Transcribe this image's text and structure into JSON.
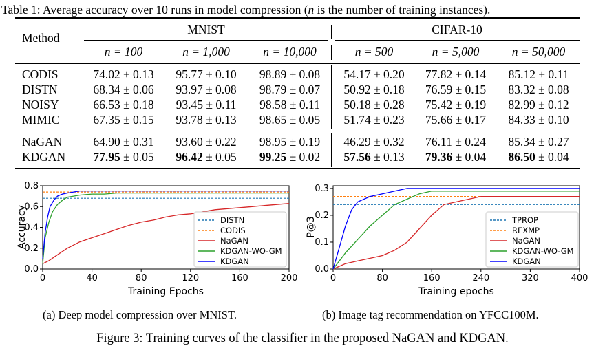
{
  "table": {
    "caption_prefix": "Table 1: Average accuracy over 10 runs in model compression (",
    "caption_var": "n",
    "caption_suffix": " is the number of training instances).",
    "method_header": "Method",
    "group_headers": [
      "MNIST",
      "CIFAR-10"
    ],
    "n_headers": [
      "n = 100",
      "n = 1,000",
      "n = 10,000",
      "n = 500",
      "n = 5,000",
      "n = 50,000"
    ],
    "rows_group1": [
      {
        "method": "CODIS",
        "cells": [
          "74.02 ± 0.13",
          "95.77 ± 0.10",
          "98.89 ± 0.08",
          "54.17 ± 0.20",
          "77.82 ± 0.14",
          "85.12 ± 0.11"
        ]
      },
      {
        "method": "DISTN",
        "cells": [
          "68.34 ± 0.06",
          "93.97 ± 0.08",
          "98.79 ± 0.07",
          "50.92 ± 0.18",
          "76.59 ± 0.15",
          "83.32 ± 0.08"
        ]
      },
      {
        "method": "NOISY",
        "cells": [
          "66.53 ± 0.18",
          "93.45 ± 0.11",
          "98.58 ± 0.11",
          "50.18 ± 0.28",
          "75.42 ± 0.19",
          "82.99 ± 0.12"
        ]
      },
      {
        "method": "MIMIC",
        "cells": [
          "67.35 ± 0.15",
          "93.78 ± 0.13",
          "98.65 ± 0.05",
          "51.74 ± 0.23",
          "75.66 ± 0.17",
          "84.33 ± 0.10"
        ]
      }
    ],
    "rows_group2": [
      {
        "method": "NaGAN",
        "cells": [
          "64.90 ± 0.31",
          "93.60 ± 0.22",
          "98.95 ± 0.19",
          "46.29 ± 0.32",
          "76.11 ± 0.24",
          "85.34 ± 0.27"
        ]
      }
    ],
    "kdgan_row": {
      "method": "KDGAN",
      "bold": [
        "77.95",
        "96.42",
        "99.25",
        "57.56",
        "79.36",
        "86.50"
      ],
      "rest": [
        " ± 0.05",
        " ± 0.05",
        " ± 0.02",
        " ± 0.13",
        " ± 0.04",
        " ± 0.04"
      ]
    }
  },
  "chart_data": [
    {
      "type": "line",
      "xlabel": "Training Epochs",
      "ylabel": "Accuracy",
      "xlim": [
        0,
        200
      ],
      "ylim": [
        0.0,
        0.8
      ],
      "xticks": [
        "0",
        "40",
        "80",
        "120",
        "160",
        "200"
      ],
      "yticks": [
        "0.0",
        "0.2",
        "0.4",
        "0.6",
        "0.8"
      ],
      "legend_position": "bottom-right",
      "series": [
        {
          "name": "DISTN",
          "style": "dashed",
          "color": "#1f77b4",
          "x": [
            0,
            200
          ],
          "y": [
            0.68,
            0.68
          ]
        },
        {
          "name": "CODIS",
          "style": "dashed",
          "color": "#ff7f0e",
          "x": [
            0,
            200
          ],
          "y": [
            0.74,
            0.74
          ]
        },
        {
          "name": "NaGAN",
          "style": "solid",
          "color": "#d62728",
          "x": [
            0,
            5,
            10,
            15,
            20,
            30,
            40,
            50,
            60,
            70,
            80,
            90,
            100,
            110,
            120,
            130,
            140,
            150,
            160,
            170,
            180,
            190,
            200
          ],
          "y": [
            0.05,
            0.08,
            0.12,
            0.16,
            0.2,
            0.26,
            0.3,
            0.34,
            0.38,
            0.42,
            0.45,
            0.47,
            0.5,
            0.52,
            0.53,
            0.55,
            0.57,
            0.58,
            0.59,
            0.6,
            0.61,
            0.62,
            0.63
          ]
        },
        {
          "name": "KDGAN-WO-GM",
          "style": "solid",
          "color": "#2ca02c",
          "x": [
            0,
            2,
            5,
            8,
            12,
            16,
            20,
            25,
            30,
            40,
            50,
            60,
            80,
            100,
            120,
            140,
            160,
            180,
            200
          ],
          "y": [
            0.05,
            0.3,
            0.45,
            0.55,
            0.62,
            0.66,
            0.69,
            0.7,
            0.71,
            0.72,
            0.72,
            0.73,
            0.73,
            0.73,
            0.73,
            0.73,
            0.73,
            0.73,
            0.73
          ]
        },
        {
          "name": "KDGAN",
          "style": "solid",
          "color": "#0000ff",
          "x": [
            0,
            2,
            4,
            6,
            9,
            12,
            16,
            20,
            25,
            30,
            40,
            60,
            80,
            100,
            120,
            140,
            160,
            180,
            200
          ],
          "y": [
            0.1,
            0.35,
            0.5,
            0.6,
            0.66,
            0.7,
            0.72,
            0.73,
            0.74,
            0.75,
            0.75,
            0.75,
            0.75,
            0.75,
            0.75,
            0.75,
            0.75,
            0.75,
            0.75
          ]
        }
      ]
    },
    {
      "type": "line",
      "xlabel": "Training epochs",
      "ylabel": "P@3",
      "xlim": [
        0,
        400
      ],
      "ylim": [
        0.0,
        0.31
      ],
      "xticks": [
        "0",
        "80",
        "160",
        "240",
        "320",
        "400"
      ],
      "yticks": [
        "0.0",
        "0.1",
        "0.2",
        "0.3"
      ],
      "legend_position": "bottom-right",
      "series": [
        {
          "name": "TPROP",
          "style": "dashed",
          "color": "#1f77b4",
          "x": [
            0,
            400
          ],
          "y": [
            0.24,
            0.24
          ]
        },
        {
          "name": "REXMP",
          "style": "dashed",
          "color": "#ff7f0e",
          "x": [
            0,
            400
          ],
          "y": [
            0.27,
            0.27
          ]
        },
        {
          "name": "NaGAN",
          "style": "solid",
          "color": "#d62728",
          "x": [
            0,
            10,
            20,
            40,
            60,
            80,
            100,
            120,
            140,
            160,
            180,
            200,
            220,
            240,
            260,
            280,
            300,
            320,
            340,
            360,
            380,
            400
          ],
          "y": [
            0.0,
            0.01,
            0.02,
            0.03,
            0.04,
            0.05,
            0.07,
            0.1,
            0.15,
            0.2,
            0.24,
            0.25,
            0.26,
            0.27,
            0.27,
            0.27,
            0.27,
            0.27,
            0.27,
            0.27,
            0.27,
            0.27
          ]
        },
        {
          "name": "KDGAN-WO-GM",
          "style": "solid",
          "color": "#2ca02c",
          "x": [
            0,
            10,
            20,
            40,
            60,
            80,
            100,
            120,
            140,
            160,
            200,
            240,
            280,
            320,
            360,
            400
          ],
          "y": [
            0.0,
            0.03,
            0.06,
            0.11,
            0.16,
            0.2,
            0.24,
            0.26,
            0.28,
            0.29,
            0.29,
            0.29,
            0.29,
            0.29,
            0.29,
            0.29
          ]
        },
        {
          "name": "KDGAN",
          "style": "solid",
          "color": "#0000ff",
          "x": [
            0,
            10,
            20,
            30,
            40,
            60,
            80,
            100,
            120,
            160,
            200,
            240,
            280,
            320,
            360,
            400
          ],
          "y": [
            0.0,
            0.08,
            0.16,
            0.22,
            0.25,
            0.27,
            0.28,
            0.29,
            0.3,
            0.3,
            0.3,
            0.3,
            0.3,
            0.3,
            0.3,
            0.3
          ]
        }
      ]
    }
  ],
  "subcaptions": [
    "(a) Deep model compression over MNIST.",
    "(b) Image tag recommendation on YFCC100M."
  ],
  "figure_caption": "Figure 3: Training curves of the classifier in the proposed NaGAN and KDGAN."
}
